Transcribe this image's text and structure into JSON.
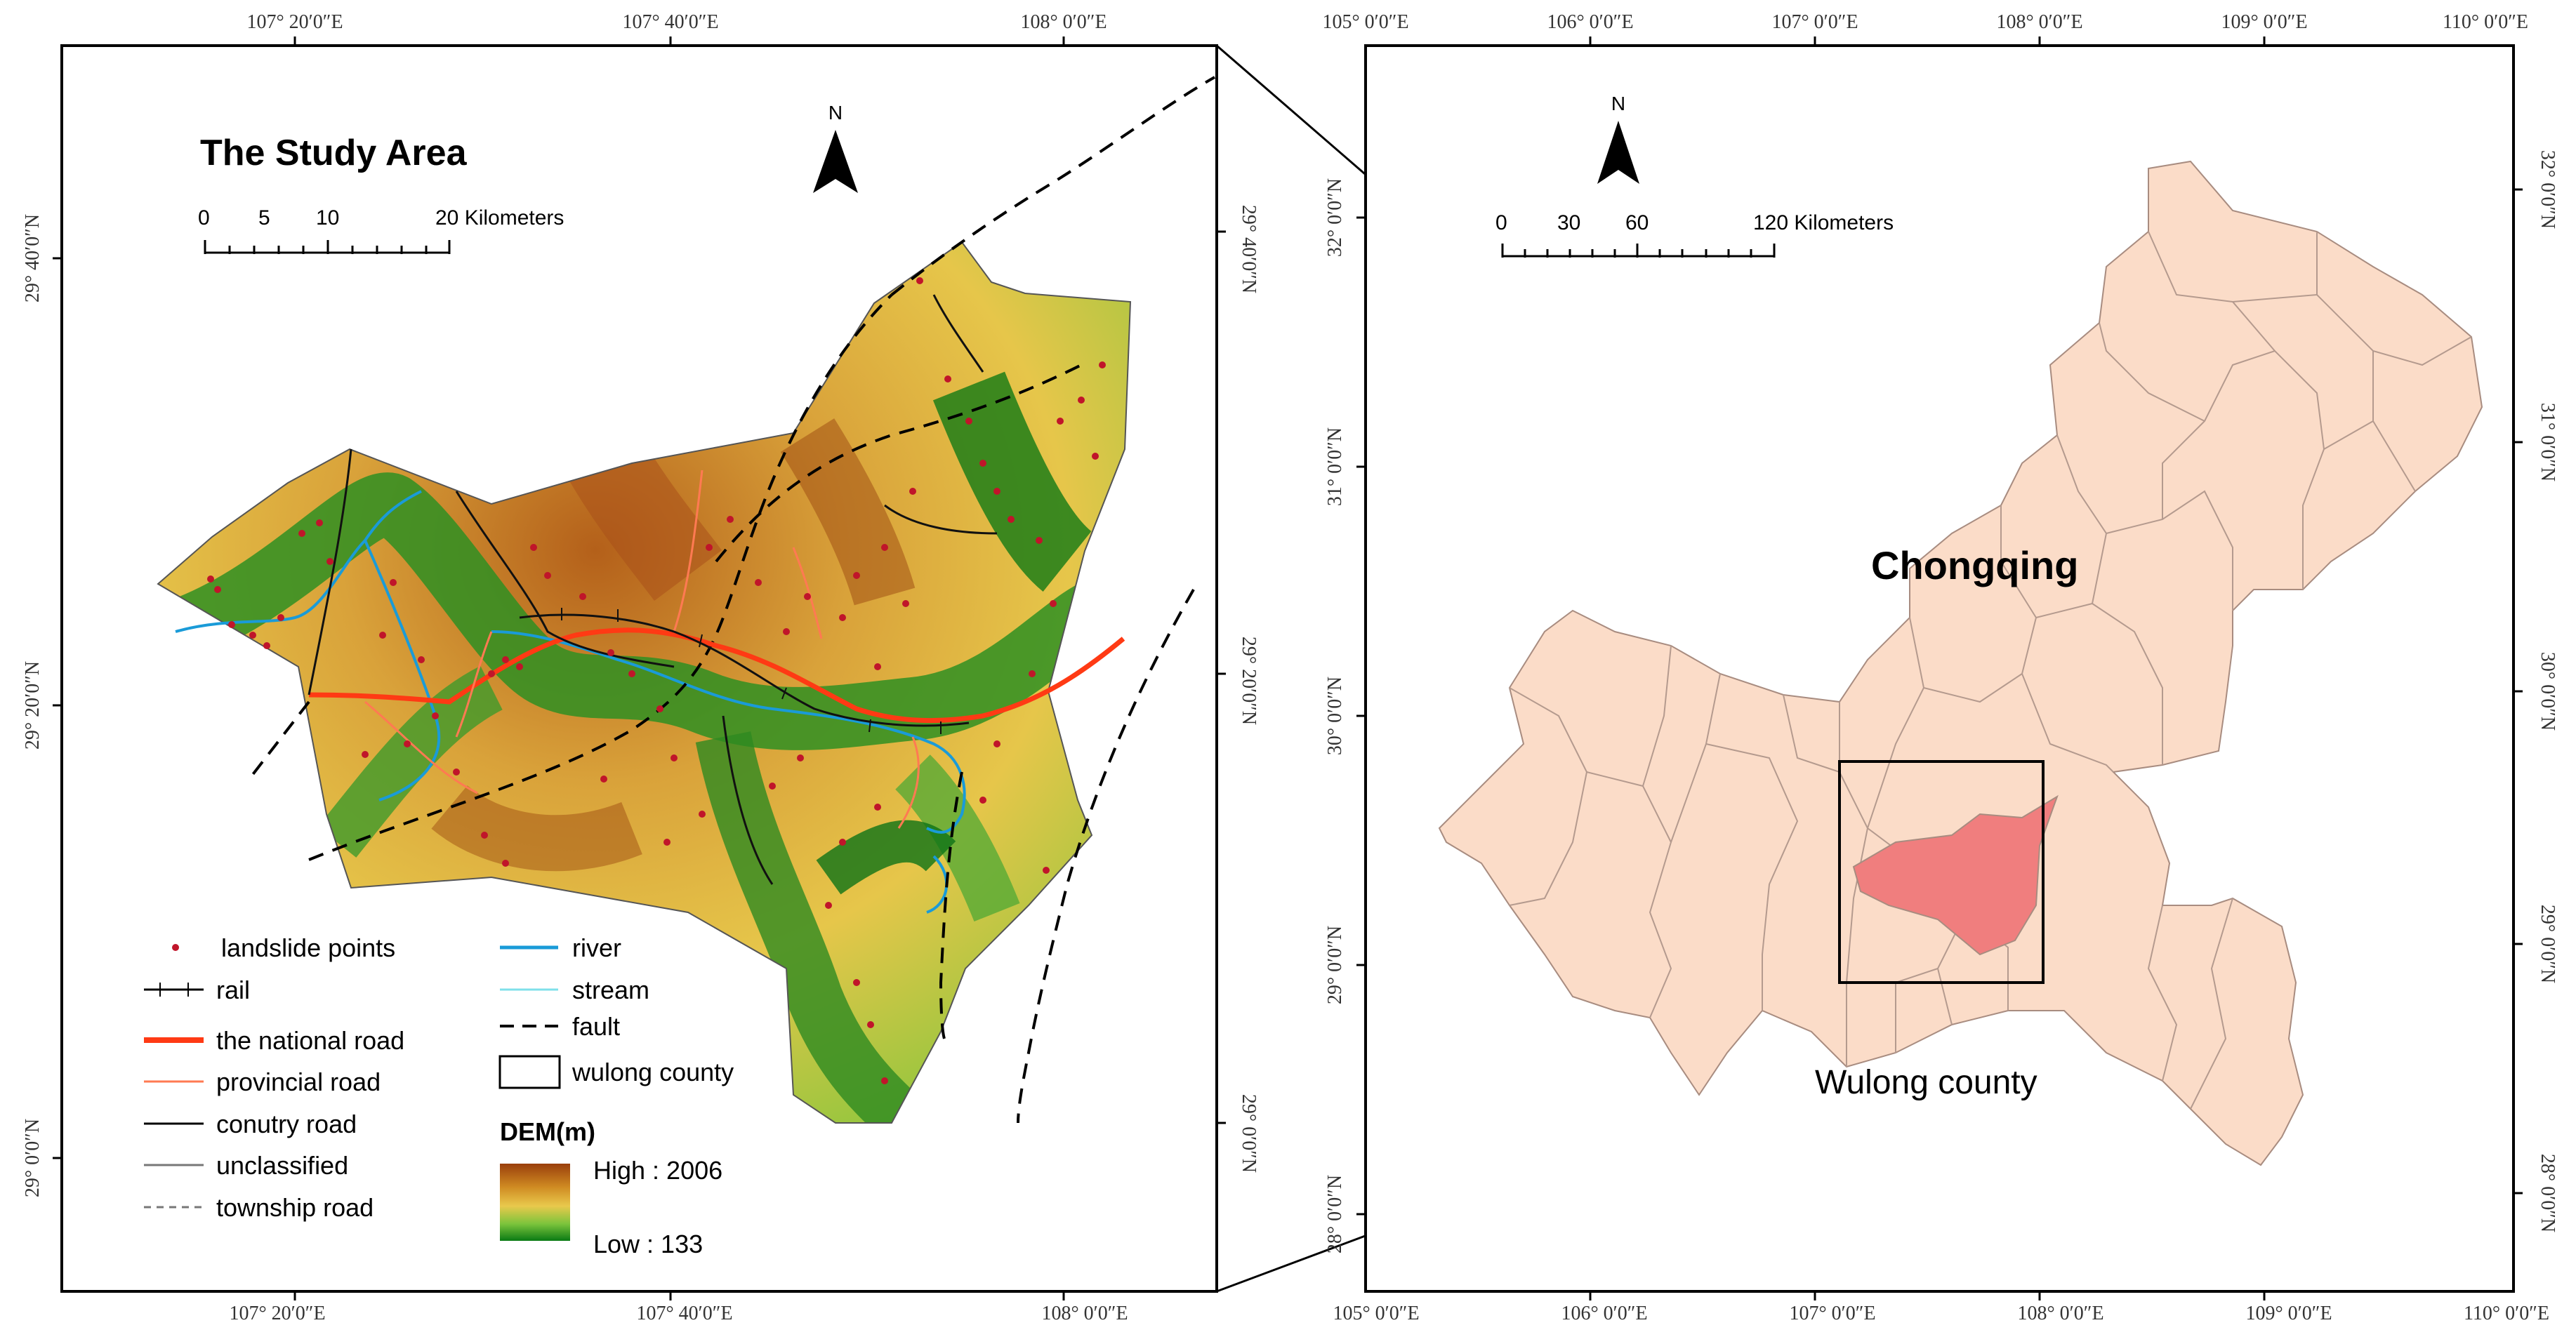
{
  "study_area": {
    "title": "The Study Area",
    "north_label": "N",
    "scale_bar": {
      "ticks": [
        "0",
        "5",
        "10",
        "20 Kilometers"
      ]
    },
    "top_ticks": [
      "107° 20′0″E",
      "107° 40′0″E",
      "108° 0′0″E"
    ],
    "bottom_ticks": [
      "107° 20′0″E",
      "107° 40′0″E",
      "108° 0′0″E"
    ],
    "left_ticks": [
      "29° 40′0″N",
      "29° 20′0″N",
      "29° 0′0″N"
    ],
    "right_ticks": [
      "29° 40′0″N",
      "29° 20′0″N",
      "29° 0′0″N"
    ],
    "legend": {
      "items_left": [
        "landslide points",
        "rail",
        "the national road",
        "provincial road",
        "conutry road",
        "unclassified",
        "township road"
      ],
      "items_right": [
        "river",
        "stream",
        "fault",
        "wulong county"
      ],
      "dem_title": "DEM(m)",
      "dem_high": "High : 2006",
      "dem_low": "Low : 133"
    },
    "colors": {
      "dem_high": "#a0480e",
      "dem_mid": "#e8c247",
      "dem_low": "#0a7a14",
      "landslide": "#c0152a",
      "national_road": "#ff3a14",
      "provincial_road": "#ff7a52",
      "river": "#1a9bd8",
      "stream": "#7fe0ea"
    }
  },
  "overview": {
    "north_label": "N",
    "scale_bar": {
      "ticks": [
        "0",
        "30",
        "60",
        "120 Kilometers"
      ]
    },
    "region_label": "Chongqing",
    "county_label": "Wulong county",
    "top_ticks": [
      "105° 0′0″E",
      "106° 0′0″E",
      "107° 0′0″E",
      "108° 0′0″E",
      "109° 0′0″E",
      "110° 0′0″E"
    ],
    "bottom_ticks": [
      "105° 0′0″E",
      "106° 0′0″E",
      "107° 0′0″E",
      "108° 0′0″E",
      "109° 0′0″E",
      "110° 0′0″E"
    ],
    "left_ticks": [
      "32° 0′0″N",
      "31° 0′0″N",
      "30° 0′0″N",
      "29° 0′0″N",
      "28° 0′0″N"
    ],
    "right_ticks": [
      "32° 0′0″N",
      "31° 0′0″N",
      "30° 0′0″N",
      "29° 0′0″N",
      "28° 0′0″N"
    ],
    "colors": {
      "region_fill": "#fbdcc8",
      "county_fill": "#f07e7e"
    }
  }
}
